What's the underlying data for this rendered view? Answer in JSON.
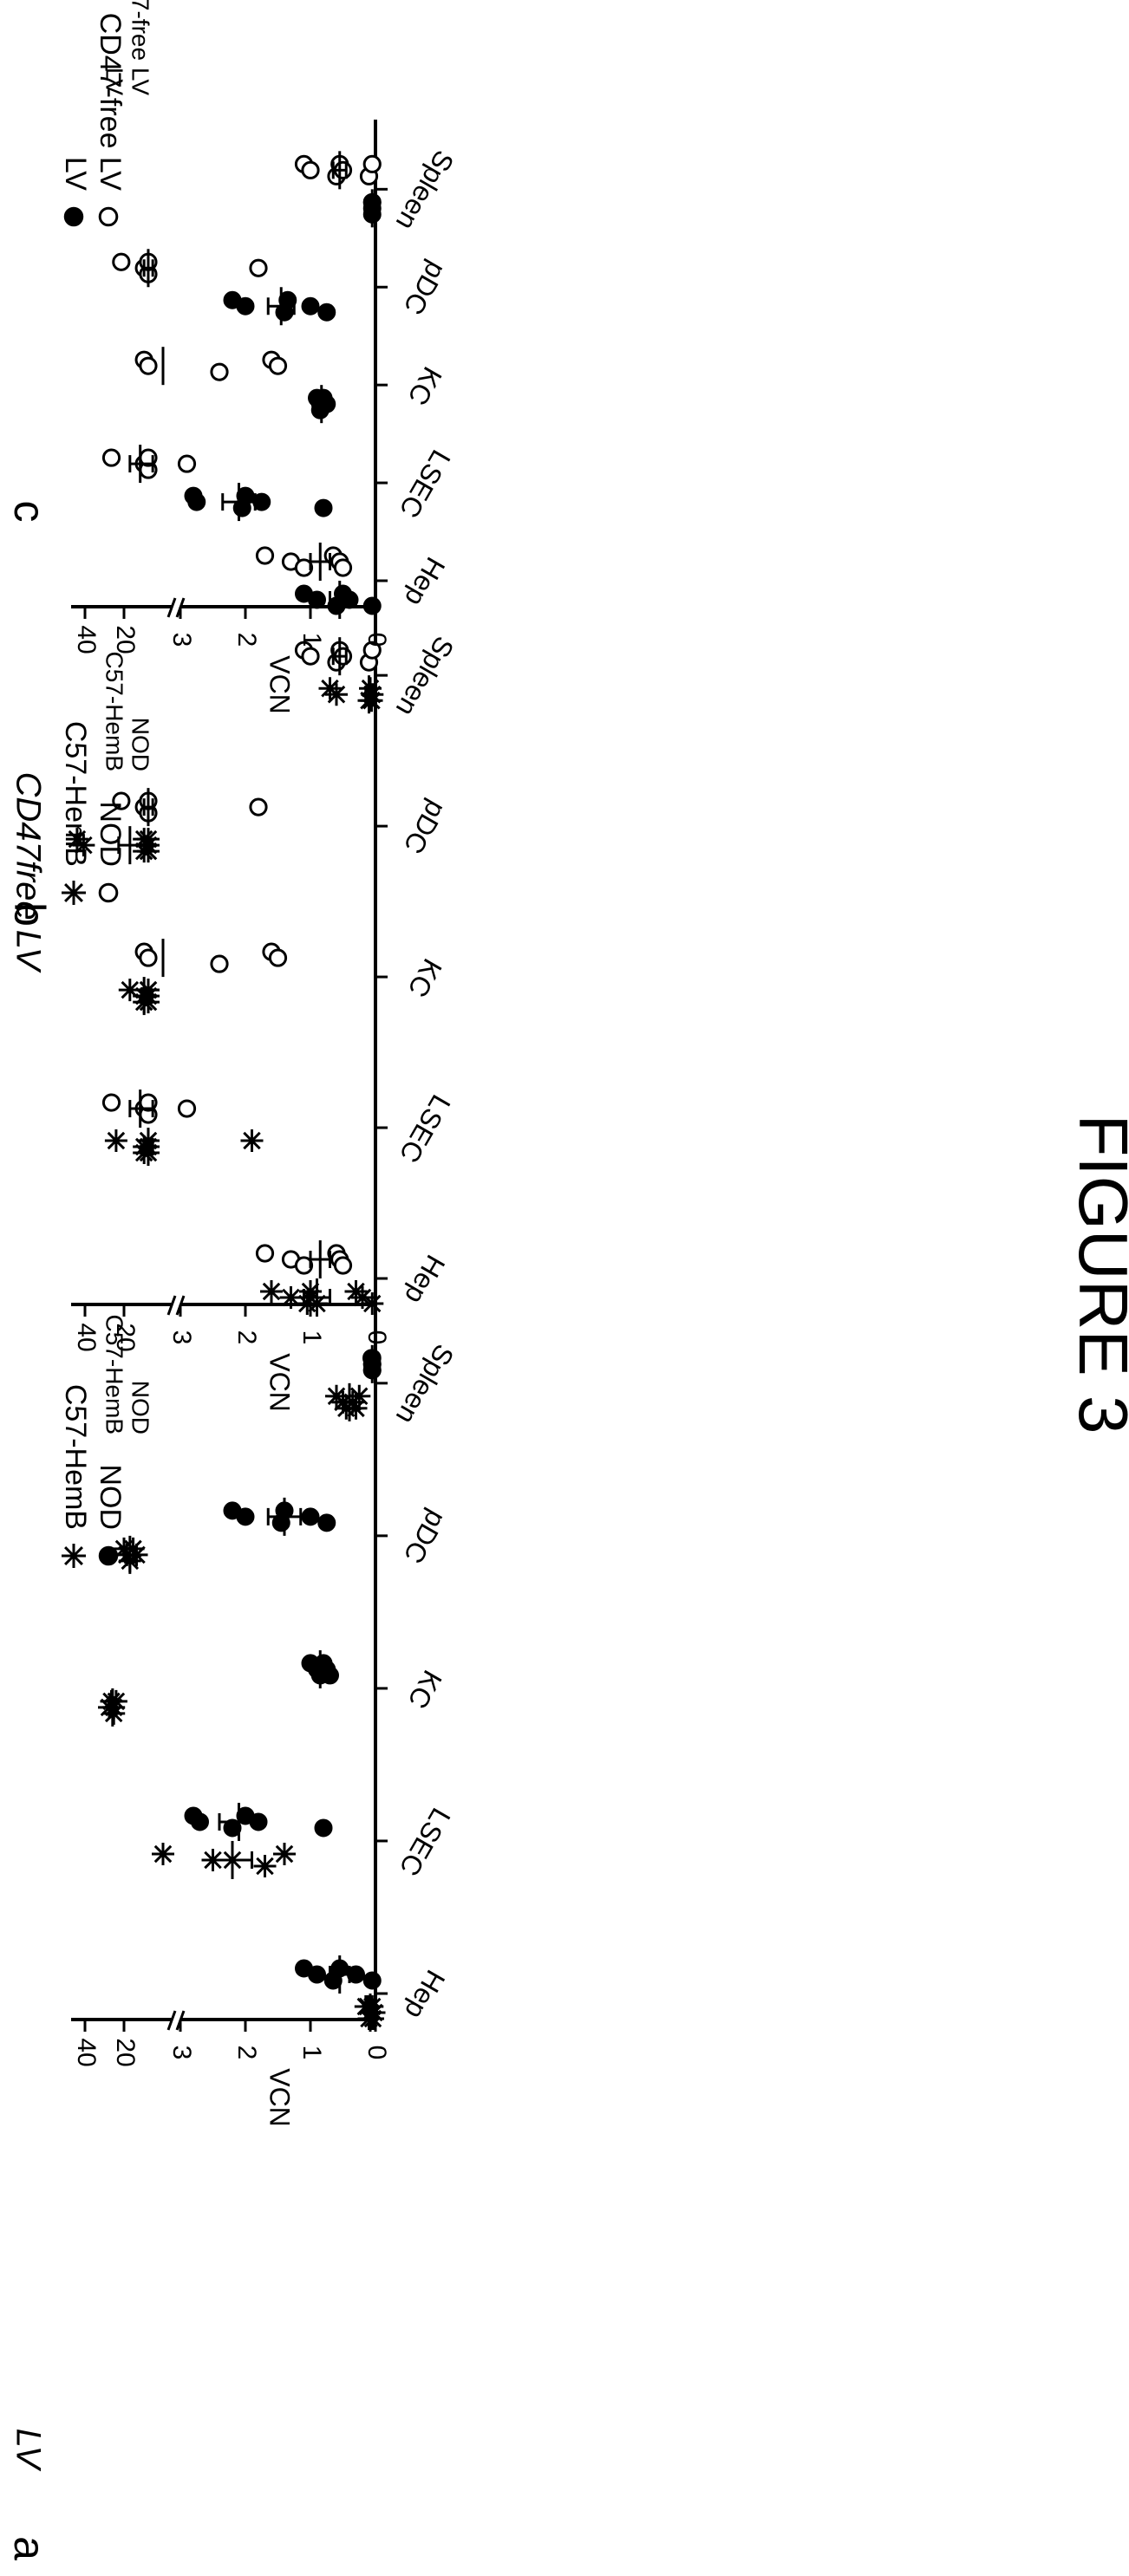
{
  "figure_label": "FIGURE 3",
  "categories": [
    "Hep",
    "LSEC",
    "KC",
    "pDC",
    "Spleen"
  ],
  "y_axis": {
    "label": "VCN",
    "ticks_lower": [
      "0",
      "1",
      "2",
      "3"
    ],
    "ticks_upper": [
      "20",
      "40"
    ]
  },
  "panels": {
    "a": {
      "letter": "a",
      "title": "LV",
      "legend": [
        {
          "label": "C57-HemB",
          "symbol": "star"
        },
        {
          "label": "NOD",
          "symbol": "filled-circle"
        }
      ],
      "legend_ghost": [
        "C57-HemB",
        "NOD"
      ]
    },
    "b": {
      "letter": "b",
      "title": "CD47free LV",
      "legend": [
        {
          "label": "C57-HemB",
          "symbol": "star"
        },
        {
          "label": "NOD",
          "symbol": "open-circle"
        }
      ],
      "legend_ghost": [
        "C57-HemB",
        "NOD"
      ]
    },
    "c": {
      "letter": "c",
      "title": "",
      "legend": [
        {
          "label": "LV",
          "symbol": "filled-circle"
        },
        {
          "label": "CD47-free LV",
          "symbol": "open-circle"
        }
      ],
      "legend_ghost": [
        "LV",
        "CD47-free LV"
      ]
    }
  },
  "chart_data": [
    {
      "panel": "a",
      "type": "scatter",
      "title": "LV",
      "ylabel": "VCN",
      "categories": [
        "Hep",
        "LSEC",
        "KC",
        "pDC",
        "Spleen"
      ],
      "y_axis_segments": {
        "lower": [
          0,
          3
        ],
        "upper": [
          10,
          45
        ]
      },
      "series": [
        {
          "name": "C57-HemB",
          "marker": "star",
          "values": [
            [
              0.05,
              0.08,
              0.1,
              0.12,
              0.02,
              0.04,
              0.15
            ],
            [
              3.2,
              2.5,
              1.7,
              1.4,
              2.2
            ],
            [
              25,
              24,
              24,
              23,
              26
            ],
            [
              20,
              19,
              18,
              17,
              16
            ],
            [
              0.6,
              0.5,
              0.3,
              0.25,
              0.35,
              0.45
            ]
          ],
          "mean": [
            0.08,
            2.2,
            24.5,
            18,
            0.4
          ],
          "err": [
            0.03,
            0.3,
            1.0,
            1.5,
            0.1
          ]
        },
        {
          "name": "NOD",
          "marker": "filled-circle",
          "values": [
            [
              1.1,
              0.9,
              0.65,
              0.55,
              0.3,
              0.05
            ],
            [
              2.8,
              2.7,
              2.2,
              2.0,
              1.8,
              0.8
            ],
            [
              1.0,
              0.9,
              0.85,
              0.8,
              0.75,
              0.7
            ],
            [
              2.2,
              2.0,
              1.45,
              1.4,
              1.0,
              0.75
            ],
            [
              0.05,
              0.05,
              0.05,
              0.06,
              0.05,
              0.05
            ]
          ],
          "mean": [
            0.55,
            2.1,
            0.85,
            1.4,
            0.05
          ],
          "err": [
            0.15,
            0.3,
            0.05,
            0.25,
            0.01
          ]
        }
      ]
    },
    {
      "panel": "b",
      "type": "scatter",
      "title": "CD47free LV",
      "ylabel": "VCN",
      "categories": [
        "Hep",
        "LSEC",
        "KC",
        "pDC",
        "Spleen"
      ],
      "y_axis_segments": {
        "lower": [
          0,
          3
        ],
        "upper": [
          10,
          45
        ]
      },
      "series": [
        {
          "name": "C57-HemB",
          "marker": "star",
          "values": [
            [
              1.6,
              1.3,
              1.05,
              1.0,
              1.0,
              0.9,
              0.3,
              0.2,
              0.05
            ],
            [
              23,
              14,
              14,
              13,
              13,
              13,
              1.9
            ],
            [
              18,
              14,
              14,
              13,
              13,
              13,
              13
            ],
            [
              46,
              41,
              14,
              14,
              13,
              13,
              13
            ],
            [
              0.7,
              0.6,
              0.1,
              0.08,
              0.05,
              0.06
            ]
          ],
          "mean": [
            0.9,
            13,
            14,
            18,
            0.1
          ],
          "err": [
            0.2,
            1.0,
            0.5,
            4.0,
            0.05
          ]
        },
        {
          "name": "NOD",
          "marker": "open-circle",
          "values": [
            [
              1.7,
              1.3,
              1.1,
              0.6,
              0.55,
              0.5
            ],
            [
              25,
              14,
              13,
              13,
              2.9
            ],
            [
              14,
              13,
              2.4,
              1.6,
              1.5
            ],
            [
              21,
              14,
              13,
              13,
              1.8
            ],
            [
              1.1,
              1.0,
              0.6,
              0.55,
              0.5,
              0.1,
              0.05
            ]
          ],
          "mean": [
            0.85,
            15,
            7,
            13,
            0.55
          ],
          "err": [
            0.15,
            3.0,
            3.0,
            1.0,
            0.1
          ]
        }
      ]
    },
    {
      "panel": "c",
      "type": "scatter",
      "title": "",
      "ylabel": "VCN",
      "categories": [
        "Hep",
        "LSEC",
        "KC",
        "pDC",
        "Spleen"
      ],
      "y_axis_segments": {
        "lower": [
          0,
          3
        ],
        "upper": [
          10,
          45
        ]
      },
      "series": [
        {
          "name": "LV",
          "marker": "filled-circle",
          "values": [
            [
              1.1,
              0.9,
              0.6,
              0.5,
              0.4,
              0.05
            ],
            [
              2.8,
              2.75,
              2.05,
              2.0,
              1.75,
              0.8
            ],
            [
              0.9,
              0.85,
              0.85,
              0.8,
              0.75
            ],
            [
              2.2,
              2.0,
              1.4,
              1.35,
              1.0,
              0.75
            ],
            [
              0.05,
              0.05,
              0.05,
              0.05
            ]
          ],
          "mean": [
            0.55,
            2.1,
            0.83,
            1.45,
            0.05
          ],
          "err": [
            0.15,
            0.25,
            0.05,
            0.2,
            0.01
          ]
        },
        {
          "name": "CD47-free LV",
          "marker": "open-circle",
          "values": [
            [
              1.7,
              1.3,
              1.1,
              0.65,
              0.55,
              0.5
            ],
            [
              25,
              14,
              13,
              13,
              2.9
            ],
            [
              14,
              13,
              2.4,
              1.6,
              1.5
            ],
            [
              21,
              14,
              13,
              13,
              1.8
            ],
            [
              1.1,
              1.0,
              0.6,
              0.55,
              0.5,
              0.1,
              0.05
            ]
          ],
          "mean": [
            0.85,
            15,
            7,
            13,
            0.55
          ],
          "err": [
            0.15,
            3.0,
            3.0,
            1.0,
            0.1
          ]
        }
      ]
    }
  ]
}
